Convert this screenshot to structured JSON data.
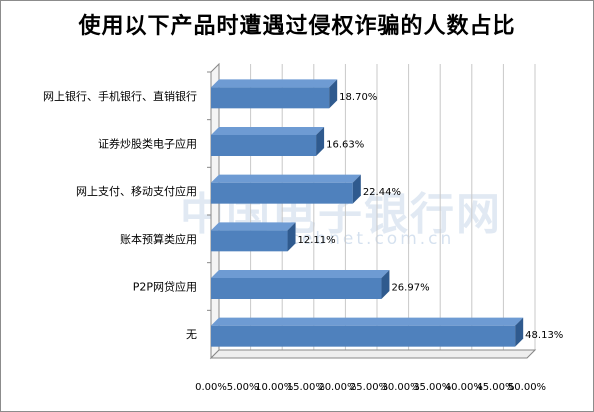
{
  "chart_data": {
    "type": "bar",
    "orientation": "horizontal",
    "style": "3d",
    "title": "使用以下产品时遭遇过侵权诈骗的人数占比",
    "categories": [
      "网上银行、手机银行、直销银行",
      "证券炒股类电子应用",
      "网上支付、移动支付应用",
      "账本预算类应用",
      "P2P网贷应用",
      "无"
    ],
    "values": [
      18.7,
      16.63,
      22.44,
      12.11,
      26.97,
      48.13
    ],
    "data_labels": [
      "18.70%",
      "16.63%",
      "22.44%",
      "12.11%",
      "26.97%",
      "48.13%"
    ],
    "xlim": [
      0,
      50
    ],
    "x_ticks": [
      "0.00%",
      "5.00%",
      "10.00%",
      "15.00%",
      "20.00%",
      "25.00%",
      "30.00%",
      "35.00%",
      "40.00%",
      "45.00%",
      "50.00%"
    ],
    "grid": true,
    "legend": "none",
    "colors": {
      "bar_front": "#4f81bd",
      "bar_top": "#6e9bd3",
      "bar_side": "#2f5a8e",
      "grid": "#c8c8c8",
      "axis": "#888888"
    }
  },
  "watermark": {
    "text": "中国电子银行网",
    "url": "www.cebnet.com.cn"
  }
}
